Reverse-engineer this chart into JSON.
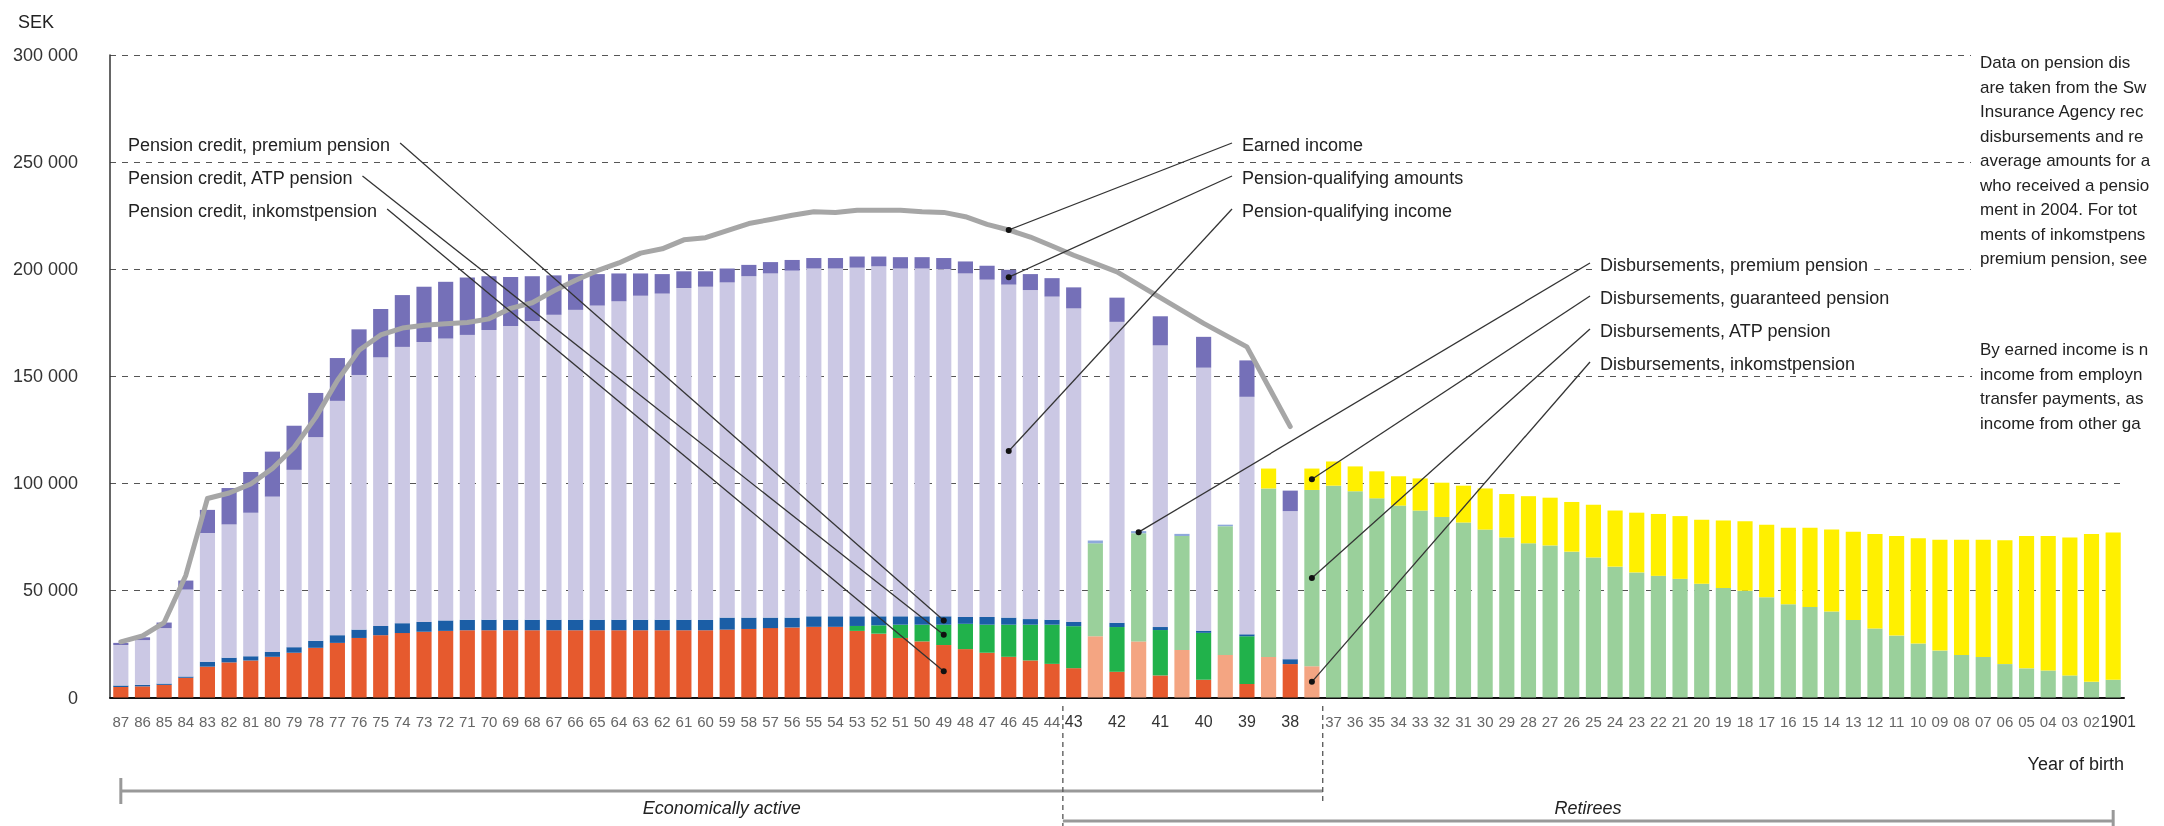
{
  "chart_data": {
    "type": "bar",
    "stacked": true,
    "grid": "y",
    "ylabel": "SEK",
    "xlabel": "Year of birth",
    "categories": [
      "87",
      "86",
      "85",
      "84",
      "83",
      "82",
      "81",
      "80",
      "79",
      "78",
      "77",
      "76",
      "75",
      "74",
      "73",
      "72",
      "71",
      "70",
      "69",
      "68",
      "67",
      "66",
      "65",
      "64",
      "63",
      "62",
      "61",
      "60",
      "59",
      "58",
      "57",
      "56",
      "55",
      "54",
      "53",
      "52",
      "51",
      "50",
      "49",
      "48",
      "47",
      "46",
      "45",
      "44",
      "43",
      null,
      "42",
      null,
      "41",
      null,
      "40",
      null,
      "39",
      null,
      "38",
      null,
      "37",
      "36",
      "35",
      "34",
      "33",
      "32",
      "31",
      "30",
      "29",
      "28",
      "27",
      "26",
      "25",
      "24",
      "23",
      "22",
      "21",
      "20",
      "19",
      "18",
      "17",
      "16",
      "15",
      "14",
      "13",
      "12",
      "11",
      "10",
      "09",
      "08",
      "07",
      "06",
      "05",
      "04",
      "03",
      "02",
      "1901"
    ],
    "ylim": [
      0,
      300000
    ],
    "yticks": [
      {
        "value": 0,
        "label": "0"
      },
      {
        "value": 50000,
        "label": "50 000"
      },
      {
        "value": 100000,
        "label": "100 000"
      },
      {
        "value": 150000,
        "label": "150 000"
      },
      {
        "value": 200000,
        "label": "200 000"
      },
      {
        "value": 250000,
        "label": "250 000"
      },
      {
        "value": 300000,
        "label": "300 000"
      }
    ],
    "series": [
      {
        "name": "Pension credit, inkomstpension",
        "color": "#e65a2e",
        "values": [
          4900,
          5200,
          5900,
          9200,
          14400,
          16400,
          17300,
          19000,
          20900,
          23200,
          25500,
          27800,
          29100,
          30100,
          30700,
          31100,
          31400,
          31400,
          31400,
          31400,
          31400,
          31400,
          31400,
          31400,
          31400,
          31400,
          31400,
          31400,
          31700,
          32000,
          32400,
          32700,
          33000,
          33000,
          31100,
          29800,
          27800,
          26200,
          24500,
          22600,
          20900,
          19000,
          17300,
          15700,
          13700,
          null,
          12000,
          null,
          10300,
          null,
          8300,
          null,
          6300,
          null,
          15600,
          null,
          null,
          null,
          null,
          null,
          null,
          null,
          null,
          null,
          null,
          null,
          null,
          null,
          null,
          null,
          null,
          null,
          null,
          null,
          null,
          null,
          null,
          null,
          null,
          null,
          null,
          null,
          null,
          null,
          null,
          null,
          null,
          null,
          null,
          null,
          null,
          null,
          null
        ]
      },
      {
        "name": "Pension credit, ATP pension",
        "color": "#21b24b",
        "values": [
          null,
          null,
          null,
          null,
          null,
          null,
          null,
          null,
          null,
          null,
          null,
          null,
          null,
          null,
          null,
          null,
          null,
          null,
          null,
          null,
          null,
          null,
          null,
          null,
          null,
          null,
          null,
          null,
          null,
          null,
          null,
          null,
          null,
          null,
          2300,
          3900,
          6200,
          7800,
          9500,
          11800,
          13100,
          15000,
          16700,
          18300,
          19600,
          null,
          20900,
          null,
          21200,
          null,
          21900,
          null,
          22300,
          null,
          null,
          null,
          null,
          null,
          null,
          null,
          null,
          null,
          null,
          null,
          null,
          null,
          null,
          null,
          null,
          null,
          null,
          null,
          null,
          null,
          null,
          null,
          null,
          null,
          null,
          null,
          null,
          null,
          null,
          null,
          null,
          null,
          null,
          null,
          null,
          null,
          null,
          null,
          null
        ]
      },
      {
        "name": "Pension credit, premium pension",
        "color": "#1b5ea6",
        "values": [
          700,
          700,
          600,
          600,
          2300,
          2200,
          2000,
          2300,
          2600,
          3300,
          3600,
          3900,
          4300,
          4600,
          4600,
          4900,
          4900,
          4900,
          4900,
          4900,
          4900,
          4900,
          4900,
          4900,
          4900,
          4900,
          4900,
          4900,
          5600,
          5300,
          4900,
          4600,
          4900,
          4900,
          4500,
          4200,
          3900,
          3900,
          3900,
          3200,
          3600,
          3300,
          2600,
          2300,
          2000,
          null,
          2000,
          null,
          1400,
          null,
          1000,
          null,
          900,
          null,
          2300,
          null,
          null,
          null,
          null,
          null,
          null,
          null,
          null,
          null,
          null,
          null,
          null,
          null,
          null,
          null,
          null,
          null,
          null,
          null,
          null,
          null,
          null,
          null,
          null,
          null,
          null,
          null,
          null,
          null,
          null,
          null,
          null,
          null,
          null,
          null,
          null,
          null,
          null
        ]
      },
      {
        "name": "Pension-qualifying income",
        "color": "#cbc8e4",
        "values": [
          18900,
          20900,
          25900,
          40600,
          60100,
          62200,
          67000,
          72500,
          82800,
          95100,
          109400,
          118900,
          125400,
          129000,
          130700,
          131600,
          133000,
          135300,
          137200,
          139500,
          142400,
          144700,
          146700,
          148700,
          151300,
          152300,
          154900,
          155500,
          156500,
          159400,
          160700,
          162000,
          162400,
          162400,
          162800,
          163400,
          162400,
          162400,
          162100,
          160400,
          157500,
          155500,
          153600,
          150900,
          146400,
          null,
          140500,
          null,
          131500,
          null,
          122800,
          null,
          110900,
          null,
          69100,
          null,
          null,
          null,
          null,
          null,
          null,
          null,
          null,
          null,
          null,
          null,
          null,
          null,
          null,
          null,
          null,
          null,
          null,
          null,
          null,
          null,
          null,
          null,
          null,
          null,
          null,
          null,
          null,
          null,
          null,
          null,
          null,
          null,
          null,
          null,
          null,
          null,
          null
        ]
      },
      {
        "name": "Pension-qualifying amounts",
        "color": "#7570b8",
        "values": [
          1000,
          1300,
          2600,
          4200,
          10800,
          17000,
          19000,
          21000,
          20600,
          20600,
          20000,
          21300,
          22600,
          24200,
          25800,
          26500,
          26800,
          25100,
          22900,
          20900,
          18400,
          16700,
          14700,
          13000,
          10400,
          9100,
          7800,
          7200,
          6500,
          5300,
          5300,
          5000,
          4900,
          4900,
          5200,
          4600,
          5300,
          5300,
          5200,
          5600,
          6500,
          6900,
          7500,
          8600,
          9800,
          null,
          11300,
          null,
          13600,
          null,
          14400,
          null,
          17000,
          null,
          9600,
          null,
          null,
          null,
          null,
          null,
          null,
          null,
          null,
          null,
          null,
          null,
          null,
          null,
          null,
          null,
          null,
          null,
          null,
          null,
          null,
          null,
          null,
          null,
          null,
          null,
          null,
          null,
          null,
          null,
          null,
          null,
          null,
          null,
          null,
          null,
          null,
          null,
          null
        ]
      },
      {
        "name": "Disbursements, inkomstpension",
        "color": "#f4a582",
        "values": [
          null,
          null,
          null,
          null,
          null,
          null,
          null,
          null,
          null,
          null,
          null,
          null,
          null,
          null,
          null,
          null,
          null,
          null,
          null,
          null,
          null,
          null,
          null,
          null,
          null,
          null,
          null,
          null,
          null,
          null,
          null,
          null,
          null,
          null,
          null,
          null,
          null,
          null,
          null,
          null,
          null,
          null,
          null,
          null,
          null,
          28600,
          null,
          26200,
          null,
          22200,
          null,
          19900,
          null,
          18900,
          null,
          14600,
          null,
          null,
          null,
          null,
          null,
          null,
          null,
          null,
          null,
          null,
          null,
          null,
          null,
          null,
          null,
          null,
          null,
          null,
          null,
          null,
          null,
          null,
          null,
          null,
          null,
          null,
          null,
          null,
          null,
          null,
          null,
          null,
          null,
          null,
          null,
          null,
          null
        ]
      },
      {
        "name": "Disbursements, ATP pension",
        "color": "#9ad09b",
        "values": [
          null,
          null,
          null,
          null,
          null,
          null,
          null,
          null,
          null,
          null,
          null,
          null,
          null,
          null,
          null,
          null,
          null,
          null,
          null,
          null,
          null,
          null,
          null,
          null,
          null,
          null,
          null,
          null,
          null,
          null,
          null,
          null,
          null,
          null,
          null,
          null,
          null,
          null,
          null,
          null,
          null,
          null,
          null,
          null,
          null,
          43400,
          null,
          50500,
          null,
          53200,
          null,
          60100,
          null,
          78700,
          null,
          82300,
          98900,
          96300,
          93000,
          89600,
          87300,
          84300,
          81700,
          78400,
          74700,
          72000,
          71000,
          68100,
          65400,
          61100,
          58400,
          56800,
          55400,
          53100,
          51100,
          49800,
          46800,
          43500,
          42200,
          40200,
          36200,
          32200,
          28900,
          25200,
          21900,
          19900,
          18900,
          15600,
          13600,
          12600,
          10300,
          7300,
          8300
        ]
      },
      {
        "name": "Disbursements, premium pension",
        "color": "#8ea9db",
        "values": [
          null,
          null,
          null,
          null,
          null,
          null,
          null,
          null,
          null,
          null,
          null,
          null,
          null,
          null,
          null,
          null,
          null,
          null,
          null,
          null,
          null,
          null,
          null,
          null,
          null,
          null,
          null,
          null,
          null,
          null,
          null,
          null,
          null,
          null,
          null,
          null,
          null,
          null,
          null,
          null,
          null,
          null,
          null,
          null,
          null,
          1300,
          null,
          1000,
          null,
          1000,
          null,
          700,
          null,
          null,
          null,
          null,
          null,
          null,
          null,
          null,
          null,
          null,
          null,
          null,
          null,
          null,
          null,
          null,
          null,
          null,
          null,
          null,
          null,
          null,
          null,
          null,
          null,
          null,
          null,
          null,
          null,
          null,
          null,
          null,
          null,
          null,
          null,
          null,
          null,
          null,
          null,
          null,
          null
        ]
      },
      {
        "name": "Disbursements, guaranteed pension",
        "color": "#fff000",
        "values": [
          null,
          null,
          null,
          null,
          null,
          null,
          null,
          null,
          null,
          null,
          null,
          null,
          null,
          null,
          null,
          null,
          null,
          null,
          null,
          null,
          null,
          null,
          null,
          null,
          null,
          null,
          null,
          null,
          null,
          null,
          null,
          null,
          null,
          null,
          null,
          null,
          null,
          null,
          null,
          null,
          null,
          null,
          null,
          null,
          null,
          null,
          null,
          null,
          null,
          null,
          null,
          null,
          null,
          9300,
          null,
          10000,
          11300,
          11600,
          12600,
          13700,
          15000,
          16000,
          17200,
          19200,
          20300,
          22000,
          22300,
          23200,
          24600,
          26200,
          27900,
          28900,
          29300,
          29900,
          31600,
          32500,
          33900,
          35800,
          37100,
          38200,
          41200,
          44200,
          46500,
          49200,
          51800,
          53800,
          54800,
          57800,
          61800,
          62800,
          64400,
          69100,
          68700
        ]
      },
      {
        "name": "Earned income",
        "type": "line",
        "color": "#a6a6a6",
        "x": [
          "87",
          "86",
          "85",
          "84",
          "83",
          "82",
          "81",
          "80",
          "79",
          "78",
          "77",
          "76",
          "75",
          "74",
          "73",
          "72",
          "71",
          "70",
          "69",
          "68",
          "67",
          "66",
          "65",
          "64",
          "63",
          "62",
          "61",
          "60",
          "59",
          "58",
          "57",
          "56",
          "55",
          "54",
          "53",
          "52",
          "51",
          "50",
          "49",
          "48",
          "47",
          "46",
          "45",
          "44",
          "43",
          "42",
          "41",
          "40",
          "39",
          "38"
        ],
        "values": [
          26000,
          28800,
          35000,
          57000,
          92900,
          95500,
          99700,
          106900,
          116700,
          130800,
          148000,
          162100,
          169300,
          172500,
          173800,
          174500,
          175100,
          176800,
          181700,
          184300,
          189900,
          194800,
          199300,
          202900,
          207500,
          209500,
          213700,
          214700,
          218000,
          221300,
          223200,
          225200,
          226800,
          226500,
          227500,
          227500,
          227500,
          226800,
          226500,
          224500,
          220900,
          218300,
          215000,
          210800,
          206500,
          198700,
          186700,
          174700,
          163700,
          126500
        ]
      }
    ],
    "annotations": [
      "Economically active",
      "Retirees",
      "Data on pension dis\nare taken from the Sw\nInsurance Agency rec\ndisbursements and re\naverage amounts for a\nwho received a pensio\nment in 2004. For tot\nments of inkomstpens\npremium pension, see",
      "By earned income is n\nincome from employn\ntransfer payments, as\nincome from other ga"
    ]
  }
}
